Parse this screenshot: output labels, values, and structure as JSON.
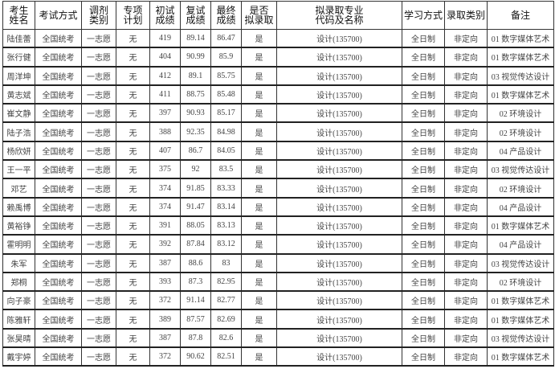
{
  "headers": [
    "考生\n姓名",
    "考试方式",
    "调剂\n类别",
    "专项\n计划",
    "初试\n成绩",
    "复试\n成绩",
    "最终\n成绩",
    "是否\n拟录取",
    "拟录取专业\n代码及名称",
    "学习方式",
    "录取类别",
    "备注"
  ],
  "rows": [
    [
      "陆佳蕾",
      "全国统考",
      "一志愿",
      "无",
      "419",
      "89.14",
      "86.47",
      "是",
      "设计(135700)",
      "全日制",
      "非定向",
      "01 数字媒体艺术"
    ],
    [
      "张行健",
      "全国统考",
      "一志愿",
      "无",
      "404",
      "90.99",
      "85.9",
      "是",
      "设计(135700)",
      "全日制",
      "非定向",
      "01 数字媒体艺术"
    ],
    [
      "周洋坤",
      "全国统考",
      "一志愿",
      "无",
      "412",
      "89.1",
      "85.75",
      "是",
      "设计(135700)",
      "全日制",
      "非定向",
      "03 视觉传达设计"
    ],
    [
      "黄志斌",
      "全国统考",
      "一志愿",
      "无",
      "411",
      "88.75",
      "85.48",
      "是",
      "设计(135700)",
      "全日制",
      "非定向",
      "01 数字媒体艺术"
    ],
    [
      "崔文静",
      "全国统考",
      "一志愿",
      "无",
      "397",
      "90.93",
      "85.17",
      "是",
      "设计(135700)",
      "全日制",
      "非定向",
      "02 环境设计"
    ],
    [
      "陆子浩",
      "全国统考",
      "一志愿",
      "无",
      "388",
      "92.35",
      "84.98",
      "是",
      "设计(135700)",
      "全日制",
      "非定向",
      "02 环境设计"
    ],
    [
      "杨欣妍",
      "全国统考",
      "一志愿",
      "无",
      "407",
      "86.7",
      "84.05",
      "是",
      "设计(135700)",
      "全日制",
      "非定向",
      "04 产品设计"
    ],
    [
      "王一平",
      "全国统考",
      "一志愿",
      "无",
      "375",
      "92",
      "83.5",
      "是",
      "设计(135700)",
      "全日制",
      "非定向",
      "03 视觉传达设计"
    ],
    [
      "邓艺",
      "全国统考",
      "一志愿",
      "无",
      "374",
      "91.85",
      "83.33",
      "是",
      "设计(135700)",
      "全日制",
      "非定向",
      "02 环境设计"
    ],
    [
      "赖禹博",
      "全国统考",
      "一志愿",
      "无",
      "374",
      "91.47",
      "83.14",
      "是",
      "设计(135700)",
      "全日制",
      "非定向",
      "04 产品设计"
    ],
    [
      "黄裕铮",
      "全国统考",
      "一志愿",
      "无",
      "391",
      "88.05",
      "83.13",
      "是",
      "设计(135700)",
      "全日制",
      "非定向",
      "01 数字媒体艺术"
    ],
    [
      "霍明明",
      "全国统考",
      "一志愿",
      "无",
      "392",
      "87.84",
      "83.12",
      "是",
      "设计(135700)",
      "全日制",
      "非定向",
      "04 产品设计"
    ],
    [
      "朱军",
      "全国统考",
      "一志愿",
      "无",
      "387",
      "88.6",
      "83",
      "是",
      "设计(135700)",
      "全日制",
      "非定向",
      "03 视觉传达设计"
    ],
    [
      "郑桐",
      "全国统考",
      "一志愿",
      "无",
      "393",
      "87.3",
      "82.95",
      "是",
      "设计(135700)",
      "全日制",
      "非定向",
      "02 环境设计"
    ],
    [
      "向子豪",
      "全国统考",
      "一志愿",
      "无",
      "372",
      "91.14",
      "82.77",
      "是",
      "设计(135700)",
      "全日制",
      "非定向",
      "01 数字媒体艺术"
    ],
    [
      "陈雅轩",
      "全国统考",
      "一志愿",
      "无",
      "389",
      "87.57",
      "82.69",
      "是",
      "设计(135700)",
      "全日制",
      "非定向",
      "01 数字媒体艺术"
    ],
    [
      "张昊晴",
      "全国统考",
      "一志愿",
      "无",
      "387",
      "87.8",
      "82.6",
      "是",
      "设计(135700)",
      "全日制",
      "非定向",
      "03 视觉传达设计"
    ],
    [
      "戴宇婷",
      "全国统考",
      "一志愿",
      "无",
      "372",
      "90.62",
      "82.51",
      "是",
      "设计(135700)",
      "全日制",
      "非定向",
      "01 数字媒体艺术"
    ]
  ]
}
